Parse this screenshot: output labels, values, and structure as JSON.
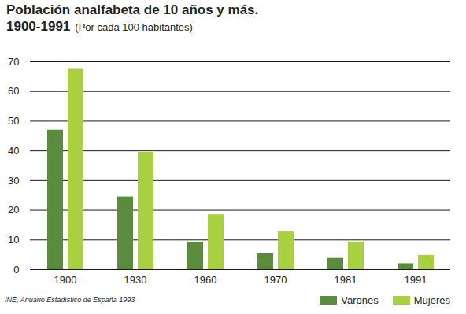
{
  "chart_data": {
    "type": "bar",
    "title": [
      "Población analfabeta de 10 años y más.",
      "1900-1991"
    ],
    "subtitle": "(Por cada 100 habitantes)",
    "source": "INE, Anuario Estadístico de España 1993",
    "categories": [
      "1900",
      "1930",
      "1960",
      "1970",
      "1981",
      "1991"
    ],
    "series": [
      {
        "name": "Varones",
        "color": "#5b8c3e",
        "values": [
          47,
          24.5,
          9.3,
          5.3,
          3.8,
          2
        ]
      },
      {
        "name": "Mujeres",
        "color": "#a8d040",
        "values": [
          67.5,
          39.5,
          18.5,
          12.7,
          9.3,
          4.8
        ]
      }
    ],
    "ylim": [
      0,
      70
    ],
    "yticks": [
      0,
      10,
      20,
      30,
      40,
      50,
      60,
      70
    ],
    "grid": true,
    "legend": "bottom-right"
  }
}
